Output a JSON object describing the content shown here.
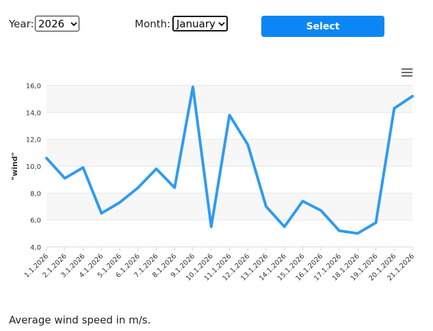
{
  "controls": {
    "year_label": "Year:",
    "year_value": "2026",
    "month_label": "Month:",
    "month_value": "January",
    "select_label": "Select"
  },
  "chart_menu_icon": "hamburger-menu-icon",
  "caption": "Average wind speed in m/s.",
  "colors": {
    "line": "#2f9bf2",
    "button": "#0b86f4",
    "band": "#f7f7f7",
    "grid": "#e6e6e6"
  },
  "chart_data": {
    "type": "line",
    "ylabel": "\"wind\"",
    "ylim": [
      4,
      16
    ],
    "yticks": [
      "4,0",
      "6,0",
      "8,0",
      "10,0",
      "12,0",
      "14,0",
      "16,0"
    ],
    "grid": true,
    "alternate_bands": true,
    "categories": [
      "1.1.2026",
      "2.1.2026",
      "3.1.2026",
      "4.1.2026",
      "5.1.2026",
      "6.1.2026",
      "7.1.2026",
      "8.1.2026",
      "9.1.2026",
      "10.1.2026",
      "11.1.2026",
      "12.1.2026",
      "13.1.2026",
      "14.1.2026",
      "15.1.2026",
      "16.1.2026",
      "17.1.2026",
      "18.1.2026",
      "19.1.2026",
      "20.1.2026",
      "21.1.2026"
    ],
    "series": [
      {
        "values": [
          10.6,
          9.1,
          9.9,
          6.5,
          7.3,
          8.4,
          9.8,
          8.4,
          15.9,
          5.5,
          13.8,
          11.6,
          7.0,
          5.5,
          7.4,
          6.7,
          5.2,
          5.0,
          5.8,
          14.3,
          15.2
        ]
      }
    ]
  }
}
